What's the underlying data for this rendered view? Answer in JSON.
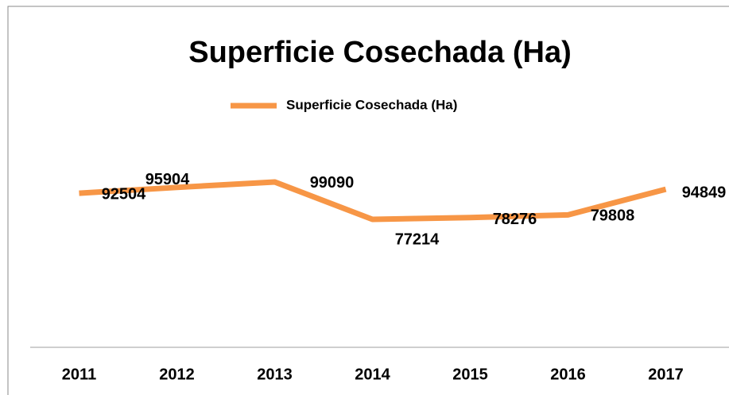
{
  "chart_data": {
    "type": "line",
    "title": "Superficie  Cosechada (Ha)",
    "categories": [
      "2011",
      "2012",
      "2013",
      "2014",
      "2015",
      "2016",
      "2017"
    ],
    "series": [
      {
        "name": "Superficie  Cosechada (Ha)",
        "color": "#f79646",
        "values": [
          92504,
          95904,
          99090,
          77214,
          78276,
          79808,
          94849
        ]
      }
    ],
    "ylim": [
      0,
      120000
    ],
    "legend": "top"
  }
}
